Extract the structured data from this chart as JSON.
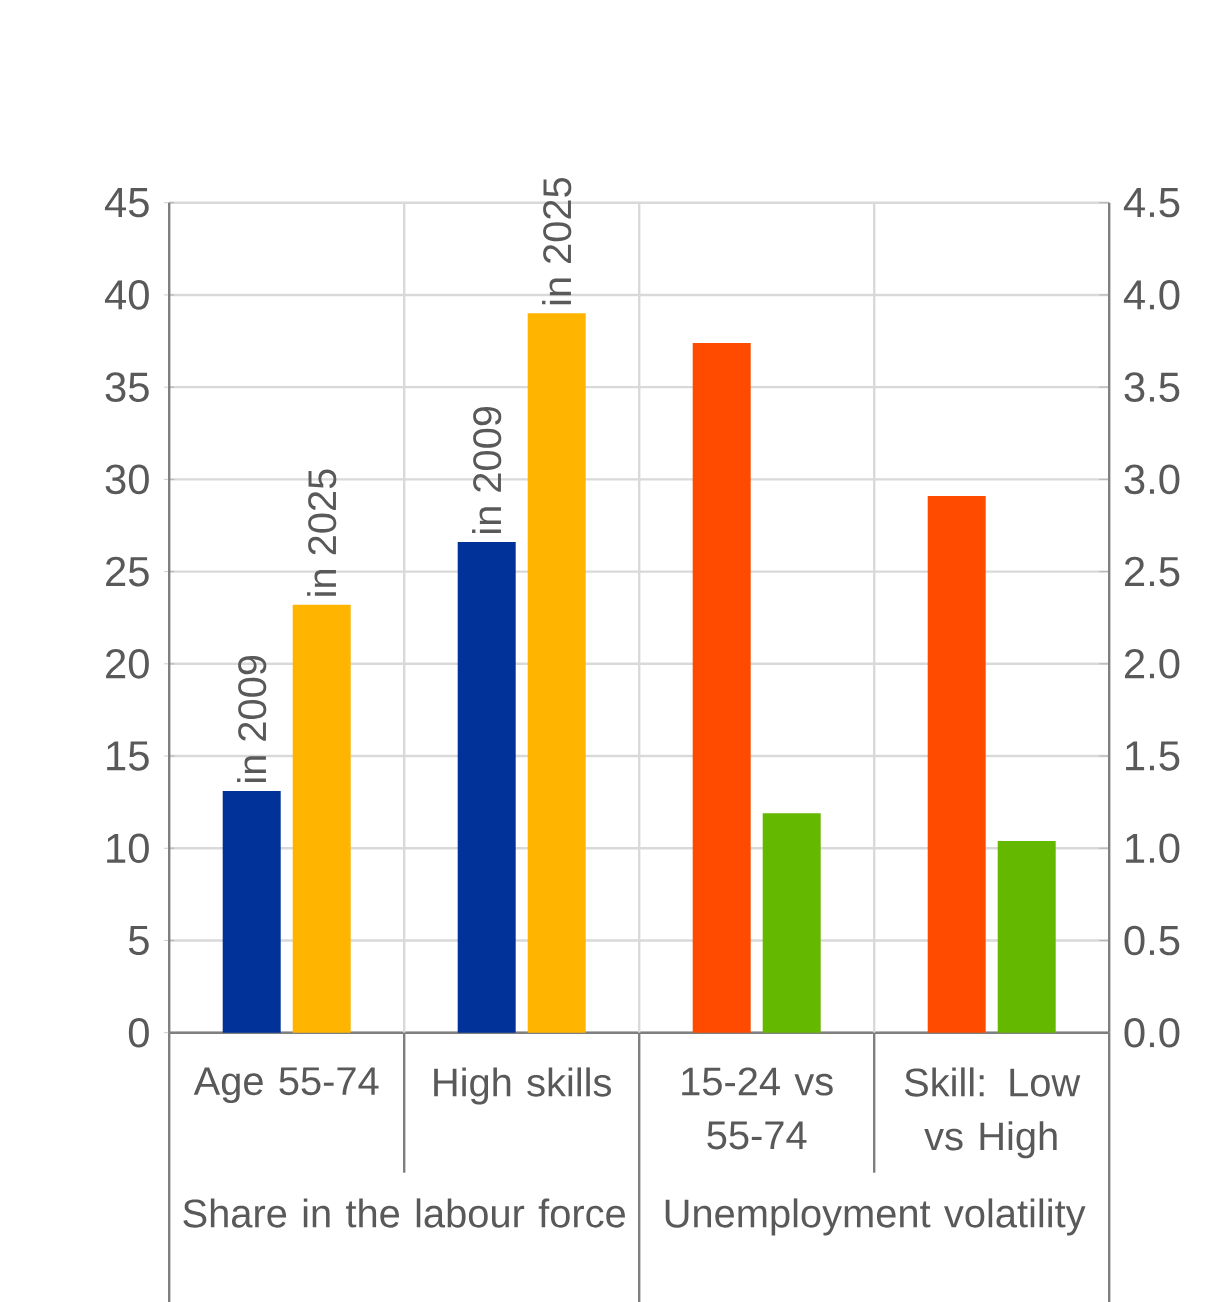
{
  "chart_data": {
    "type": "bar",
    "categories": [
      "Age 55-74",
      "High skills",
      "15-24 vs 55-74",
      "Skill: Low vs High"
    ],
    "series": [
      {
        "name": "in 2009",
        "color": "#003299",
        "values": [
          13.1,
          26.6,
          null,
          null
        ]
      },
      {
        "name": "in 2025",
        "color": "#FFB400",
        "values": [
          23.2,
          39.0,
          null,
          null
        ]
      },
      {
        "color": "#FF4B00",
        "axis": "y2",
        "values": [
          null,
          null,
          3.74,
          2.91
        ]
      },
      {
        "color": "#65B800",
        "axis": "y2",
        "values": [
          null,
          null,
          1.19,
          1.04
        ]
      }
    ],
    "ylim": [
      0,
      45
    ],
    "yticks": [
      0,
      5,
      10,
      15,
      20,
      25,
      30,
      35,
      40,
      45
    ],
    "y2lim": [
      0,
      4.5
    ],
    "y2ticks": [
      {
        "value": 0,
        "label": "0.0"
      },
      {
        "value": 0.5,
        "label": "0.5"
      },
      {
        "value": 1,
        "label": "1.0"
      },
      {
        "value": 1.5,
        "label": "1.5"
      },
      {
        "value": 2,
        "label": "2.0"
      },
      {
        "value": 2.5,
        "label": "2.5"
      },
      {
        "value": 3,
        "label": "3.0"
      },
      {
        "value": 3.5,
        "label": "3.5"
      },
      {
        "value": 4,
        "label": "4.0"
      },
      {
        "value": 4.5,
        "label": "4.5"
      }
    ],
    "grid": true,
    "annotations": [
      "Share in the labour force",
      "Unemployment volatility"
    ]
  }
}
